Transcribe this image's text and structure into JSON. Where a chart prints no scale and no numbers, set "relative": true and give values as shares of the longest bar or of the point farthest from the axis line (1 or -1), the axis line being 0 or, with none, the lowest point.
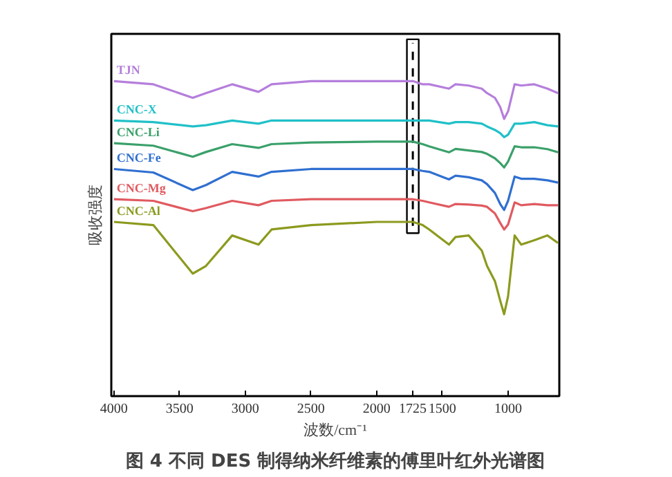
{
  "chart_data": {
    "type": "line",
    "relative": true,
    "title": "图 4 不同 DES 制得纳米纤维素的傅里叶红外光谱图",
    "xlabel": "波数/cm⁻¹",
    "ylabel": "吸收强度",
    "tick_labels": "x",
    "grid": false,
    "xlim": [
      4020,
      610
    ],
    "xticks": [
      4000,
      3500,
      3000,
      2500,
      2000,
      1725,
      1500,
      1000
    ],
    "x": [
      4000,
      3700,
      3400,
      3300,
      3100,
      2900,
      2800,
      2500,
      2000,
      1725,
      1650,
      1600,
      1450,
      1400,
      1300,
      1200,
      1160,
      1100,
      1060,
      1030,
      1000,
      950,
      900,
      800,
      700,
      620
    ],
    "series": [
      {
        "name": "TJN",
        "color": "#b57edc",
        "values": [
          1.0,
          0.99,
          0.947,
          0.962,
          0.99,
          0.966,
          0.99,
          1.0,
          1.0,
          1.0,
          0.99,
          0.99,
          0.976,
          0.99,
          0.986,
          0.976,
          0.962,
          0.947,
          0.918,
          0.88,
          0.904,
          0.99,
          0.986,
          0.99,
          0.976,
          0.962
        ]
      },
      {
        "name": "CNC-X",
        "color": "#20c0c8",
        "values": [
          0.875,
          0.87,
          0.856,
          0.86,
          0.875,
          0.865,
          0.875,
          0.875,
          0.875,
          0.875,
          0.875,
          0.875,
          0.865,
          0.87,
          0.87,
          0.865,
          0.856,
          0.845,
          0.835,
          0.822,
          0.83,
          0.865,
          0.865,
          0.87,
          0.86,
          0.856
        ]
      },
      {
        "name": "CNC-Li",
        "color": "#3aa06a",
        "values": [
          0.803,
          0.795,
          0.76,
          0.775,
          0.8,
          0.788,
          0.8,
          0.805,
          0.808,
          0.808,
          0.8,
          0.793,
          0.774,
          0.785,
          0.78,
          0.775,
          0.769,
          0.755,
          0.74,
          0.726,
          0.745,
          0.793,
          0.79,
          0.79,
          0.784,
          0.774
        ]
      },
      {
        "name": "CNC-Fe",
        "color": "#2f6fd0",
        "values": [
          0.721,
          0.71,
          0.654,
          0.67,
          0.712,
          0.697,
          0.712,
          0.721,
          0.721,
          0.721,
          0.715,
          0.712,
          0.688,
          0.7,
          0.695,
          0.685,
          0.673,
          0.645,
          0.61,
          0.591,
          0.62,
          0.697,
          0.69,
          0.69,
          0.685,
          0.678
        ]
      },
      {
        "name": "CNC-Mg",
        "color": "#e05a60",
        "values": [
          0.625,
          0.62,
          0.587,
          0.597,
          0.62,
          0.606,
          0.62,
          0.625,
          0.625,
          0.625,
          0.62,
          0.615,
          0.601,
          0.61,
          0.608,
          0.605,
          0.601,
          0.58,
          0.55,
          0.529,
          0.545,
          0.615,
          0.606,
          0.61,
          0.606,
          0.606
        ]
      },
      {
        "name": "CNC-Al",
        "color": "#8c9a1e",
        "values": [
          0.553,
          0.543,
          0.389,
          0.413,
          0.51,
          0.481,
          0.529,
          0.543,
          0.553,
          0.553,
          0.543,
          0.529,
          0.481,
          0.505,
          0.51,
          0.462,
          0.413,
          0.365,
          0.303,
          0.26,
          0.317,
          0.51,
          0.481,
          0.495,
          0.51,
          0.486
        ]
      }
    ],
    "ref_lines": [
      {
        "axis": "x",
        "value": 1725,
        "color": "#000000",
        "line_style": "dashed"
      }
    ]
  }
}
